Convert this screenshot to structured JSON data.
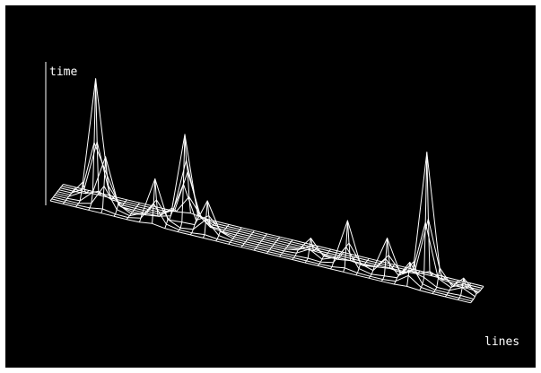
{
  "chart_data": {
    "type": "surface-3d-wireframe",
    "title": "",
    "ylabel": "time",
    "xlabel": "lines",
    "grid": "on",
    "colors": {
      "background": "#000000",
      "lines": "#ffffff",
      "frame": "#ffffff"
    },
    "peaks": [
      {
        "line": 3,
        "depth": 5,
        "height": 0.85
      },
      {
        "line": 4,
        "depth": 3,
        "height": 0.35
      },
      {
        "line": 8,
        "depth": 2,
        "height": 0.3
      },
      {
        "line": 10,
        "depth": 5,
        "height": 0.6
      },
      {
        "line": 10,
        "depth": 7,
        "height": 0.3
      },
      {
        "line": 12,
        "depth": 3,
        "height": 0.22
      },
      {
        "line": 20,
        "depth": 4,
        "height": 0.12
      },
      {
        "line": 23,
        "depth": 3,
        "height": 0.32
      },
      {
        "line": 26,
        "depth": 4,
        "height": 0.25
      },
      {
        "line": 28,
        "depth": 2,
        "height": 0.15
      },
      {
        "line": 29,
        "depth": 5,
        "height": 0.9
      },
      {
        "line": 32,
        "depth": 4,
        "height": 0.1
      }
    ]
  }
}
